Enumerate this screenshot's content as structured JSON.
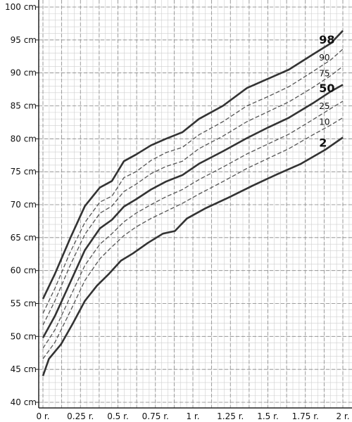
{
  "chart_data": {
    "type": "line",
    "title": "",
    "xlabel": "",
    "ylabel": "",
    "xlim": [
      0,
      2
    ],
    "ylim": [
      40,
      100
    ],
    "x_ticks": [
      0,
      0.25,
      0.5,
      0.75,
      1,
      1.25,
      1.5,
      1.75,
      2
    ],
    "x_tick_labels": [
      "0 r.",
      "0.25 r.",
      "0.5 r.",
      "0.75 r.",
      "1 r.",
      "1.25 r.",
      "1.5 r.",
      "1.75 r.",
      "2 r."
    ],
    "y_ticks": [
      40,
      45,
      50,
      55,
      60,
      65,
      70,
      75,
      80,
      85,
      90,
      95,
      100
    ],
    "y_tick_labels": [
      "40 cm",
      "45 cm",
      "50 cm",
      "55 cm",
      "60 cm",
      "65 cm",
      "70 cm",
      "75 cm",
      "80 cm",
      "85 cm",
      "90 cm",
      "95 cm",
      "100 cm"
    ],
    "grid": true,
    "colors": {
      "major": "#333333",
      "minor": "#555555",
      "grid_major": "#888888",
      "grid_minor": "#cfcfcf"
    },
    "series": [
      {
        "name": "98",
        "emphasis": "major",
        "x": [
          0,
          0.08,
          0.18,
          0.28,
          0.38,
          0.46,
          0.54,
          0.62,
          0.72,
          0.82,
          0.93,
          1.04,
          1.2,
          1.36,
          1.5,
          1.64,
          1.8,
          1.92,
          2.0
        ],
        "y": [
          55.7,
          59.5,
          64.8,
          69.8,
          72.6,
          73.6,
          76.6,
          77.6,
          79.0,
          80.0,
          81.0,
          83.0,
          85.0,
          87.7,
          89.1,
          90.5,
          92.8,
          94.5,
          96.4
        ]
      },
      {
        "name": "90",
        "emphasis": "minor",
        "x": [
          0,
          0.08,
          0.18,
          0.28,
          0.38,
          0.46,
          0.54,
          0.62,
          0.72,
          0.82,
          0.93,
          1.04,
          1.2,
          1.36,
          1.5,
          1.64,
          1.8,
          1.92,
          2.0
        ],
        "y": [
          53.5,
          57.3,
          62.7,
          67.3,
          70.4,
          71.3,
          74.1,
          75.0,
          76.7,
          77.9,
          78.7,
          80.6,
          82.6,
          85.0,
          86.4,
          87.9,
          90.2,
          92.0,
          93.6
        ]
      },
      {
        "name": "75",
        "emphasis": "minor",
        "x": [
          0,
          0.08,
          0.18,
          0.28,
          0.38,
          0.46,
          0.54,
          0.62,
          0.72,
          0.82,
          0.93,
          1.04,
          1.2,
          1.36,
          1.5,
          1.64,
          1.8,
          1.92,
          2.0
        ],
        "y": [
          51.7,
          55.4,
          60.7,
          65.5,
          68.7,
          69.8,
          72.0,
          73.1,
          74.7,
          75.8,
          76.6,
          78.5,
          80.4,
          82.6,
          84.1,
          85.6,
          87.8,
          89.6,
          91.0
        ]
      },
      {
        "name": "50",
        "emphasis": "major",
        "x": [
          0,
          0.08,
          0.18,
          0.28,
          0.38,
          0.46,
          0.54,
          0.62,
          0.72,
          0.82,
          0.93,
          1.04,
          1.2,
          1.36,
          1.5,
          1.64,
          1.8,
          1.92,
          2.0
        ],
        "y": [
          49.8,
          53.1,
          58.1,
          63.1,
          66.4,
          67.7,
          69.7,
          70.8,
          72.3,
          73.5,
          74.5,
          76.2,
          78.1,
          80.1,
          81.7,
          83.2,
          85.4,
          87.2,
          88.2
        ]
      },
      {
        "name": "25",
        "emphasis": "minor",
        "x": [
          0,
          0.08,
          0.18,
          0.28,
          0.38,
          0.46,
          0.54,
          0.62,
          0.72,
          0.82,
          0.93,
          1.04,
          1.2,
          1.36,
          1.5,
          1.64,
          1.8,
          1.92,
          2.0
        ],
        "y": [
          48.2,
          51.0,
          55.9,
          60.8,
          64.0,
          65.6,
          67.4,
          68.7,
          70.0,
          71.2,
          72.3,
          73.8,
          75.7,
          77.7,
          79.2,
          80.7,
          82.9,
          84.6,
          85.7
        ]
      },
      {
        "name": "10",
        "emphasis": "minor",
        "x": [
          0,
          0.08,
          0.18,
          0.28,
          0.38,
          0.46,
          0.54,
          0.62,
          0.72,
          0.82,
          0.93,
          1.04,
          1.2,
          1.36,
          1.5,
          1.64,
          1.8,
          1.92,
          2.0
        ],
        "y": [
          46.6,
          49.1,
          53.7,
          58.5,
          61.8,
          63.6,
          65.3,
          66.6,
          67.9,
          69.0,
          70.2,
          71.6,
          73.5,
          75.5,
          77.0,
          78.5,
          80.6,
          82.1,
          83.2
        ]
      },
      {
        "name": "2",
        "emphasis": "major",
        "x": [
          0,
          0.04,
          0.12,
          0.2,
          0.28,
          0.36,
          0.44,
          0.52,
          0.6,
          0.7,
          0.8,
          0.88,
          0.96,
          1.08,
          1.24,
          1.4,
          1.56,
          1.72,
          1.88,
          2.0
        ],
        "y": [
          44.0,
          46.6,
          48.8,
          52.0,
          55.4,
          57.7,
          59.5,
          61.5,
          62.6,
          64.2,
          65.6,
          66.0,
          67.9,
          69.4,
          71.1,
          72.9,
          74.6,
          76.2,
          78.3,
          80.2
        ]
      }
    ]
  }
}
